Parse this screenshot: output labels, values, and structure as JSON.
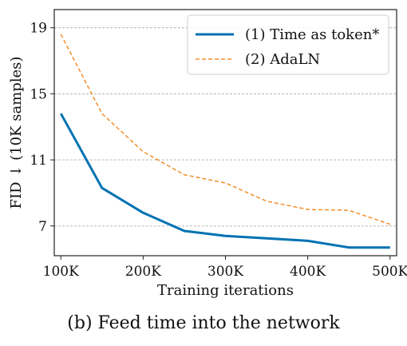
{
  "caption": "(b) Feed time into the network",
  "chart_data": {
    "type": "line",
    "xlabel": "Training iterations",
    "ylabel": "FID ↓ (10K samples)",
    "x": [
      100000,
      150000,
      200000,
      250000,
      300000,
      350000,
      400000,
      450000,
      500000
    ],
    "xticks": [
      100000,
      200000,
      300000,
      400000,
      500000
    ],
    "xtick_labels": [
      "100K",
      "200K",
      "300K",
      "400K",
      "500K"
    ],
    "yticks": [
      7,
      11,
      15,
      19
    ],
    "ytick_labels": [
      "7",
      "11",
      "15",
      "19"
    ],
    "xlim": [
      92000,
      508000
    ],
    "ylim": [
      5.2,
      20.1
    ],
    "grid": "horizontal-dashed",
    "legend_position": "top-right",
    "series": [
      {
        "name": "(1) Time as token*",
        "color": "#0072b2",
        "style": "solid",
        "values": [
          13.8,
          9.3,
          7.8,
          6.7,
          6.4,
          6.25,
          6.1,
          5.7,
          5.7
        ]
      },
      {
        "name": "(2) AdaLN",
        "color": "#f28e2b",
        "style": "dashed",
        "values": [
          18.6,
          13.8,
          11.5,
          10.1,
          9.6,
          8.5,
          8.0,
          7.95,
          7.1
        ]
      }
    ]
  }
}
